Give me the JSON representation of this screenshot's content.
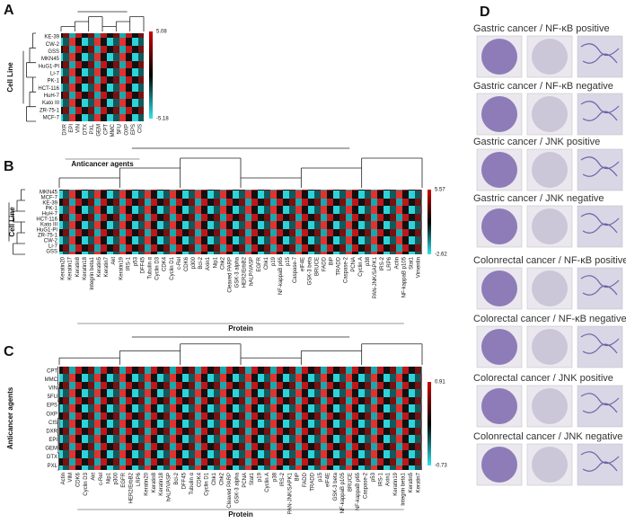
{
  "panels": {
    "A": {
      "label": "A",
      "y_label": "Cell Line",
      "x_label": "Anticancer agents",
      "rows": [
        "KE-39",
        "CW-2",
        "GSS",
        "MKN45",
        "HuG1-PI",
        "Li-7",
        "PK-1",
        "HCT-116",
        "HuH-7",
        "Kato III",
        "ZR-75-1",
        "MCF-7"
      ],
      "columns": [
        "DXR",
        "EPI",
        "VIN",
        "DTX",
        "PXL",
        "GEM",
        "CPT",
        "MMC",
        "5FU",
        "OXP",
        "EPS",
        "CIS"
      ],
      "colorbar": [
        5.08,
        -5.18
      ]
    },
    "B": {
      "label": "B",
      "y_label": "Cell Line",
      "x_label": "Protein",
      "rows": [
        "MKN45",
        "MCF-7",
        "KE-39",
        "PK-1",
        "HuH-7",
        "HCT-116",
        "Kato III",
        "HuG1-PI",
        "ZR-75-1",
        "CW-2",
        "Li-7",
        "GSS"
      ],
      "columns": [
        "Keratin20",
        "Keratin17",
        "Keratin8",
        "Keratin18",
        "Integrin beta1",
        "Keratin5",
        "Keratin7",
        "Akt",
        "Keratin19",
        "IRS-1",
        "p53",
        "DFF45",
        "Tubulin α",
        "Cyclin D3",
        "CDK4",
        "Cyclin D1",
        "c-Rel",
        "CDK6",
        "p300",
        "Bcl-2",
        "Axin1",
        "Nip1",
        "Chk2",
        "Cleaved PARP",
        "GSK-3 alpha",
        "HER2/ErbB2",
        "hALP/VASP",
        "EGFR",
        "Chk1",
        "p19",
        "NF-kappaB p65",
        "p15",
        "Caspase-7",
        "eIF4E",
        "GSK-3 beta",
        "BRUCE",
        "FADD",
        "BiP",
        "TRADD",
        "Caspase-2",
        "PCNA",
        "Cyclin A",
        "p38",
        "PAN-JNK/SAPK1",
        "IRS-2",
        "LRP6",
        "Actin",
        "NF-kappaB p105",
        "Stat1",
        "Vimentin"
      ],
      "colorbar": [
        5.57,
        -2.62
      ]
    },
    "C": {
      "label": "C",
      "y_label": "Anticancer agents",
      "x_label": "Protein",
      "rows": [
        "CPT",
        "MMC",
        "VIN",
        "5FU",
        "EPS",
        "OXP",
        "CIS",
        "DXR",
        "EPI",
        "GEM",
        "DTX",
        "PXL"
      ],
      "columns": [
        "Actin",
        "VIM",
        "CDK6",
        "Cyclin D3",
        "Akt",
        "c-Rel",
        "Nip1",
        "p300",
        "EGFR",
        "HER2/ErbB2",
        "LRP6",
        "Keratin20",
        "Keratin8",
        "Keratin18",
        "hALP/VASP",
        "Bcl-2",
        "DFF45",
        "Tubulin α",
        "CDK4",
        "Cyclin D1",
        "Chk1",
        "Chk2",
        "Cleaved PARP",
        "GSK-3 alpha",
        "PCNA",
        "Stat1",
        "p19",
        "Cyclin A",
        "p38",
        "IRS-2",
        "PAN-JNK/SAPK1",
        "BiP",
        "FADD",
        "TRADD",
        "p15",
        "eIF4E",
        "GSK-3 beta",
        "NF-kappaB p105",
        "BRUCE",
        "NF-kappaB p65",
        "Caspase-2",
        "p53",
        "IRS-1",
        "Axin1",
        "Keratin19",
        "Integrin beta1",
        "Keratin5",
        "Keratin7"
      ],
      "colorbar": [
        0.91,
        -0.73
      ]
    },
    "D": {
      "label": "D",
      "captions": [
        "Gastric cancer / NF-κB positive",
        "Gastric cancer / NF-κB negative",
        "Gastric cancer / JNK positive",
        "Gastric cancer / JNK negative",
        "Colonrectal cancer / NF-κB positive",
        "Colorectal cancer / NF-κB negative",
        "Colorectal cancer / JNK  positive",
        "Colonrectal cancer / JNK negative"
      ]
    }
  }
}
